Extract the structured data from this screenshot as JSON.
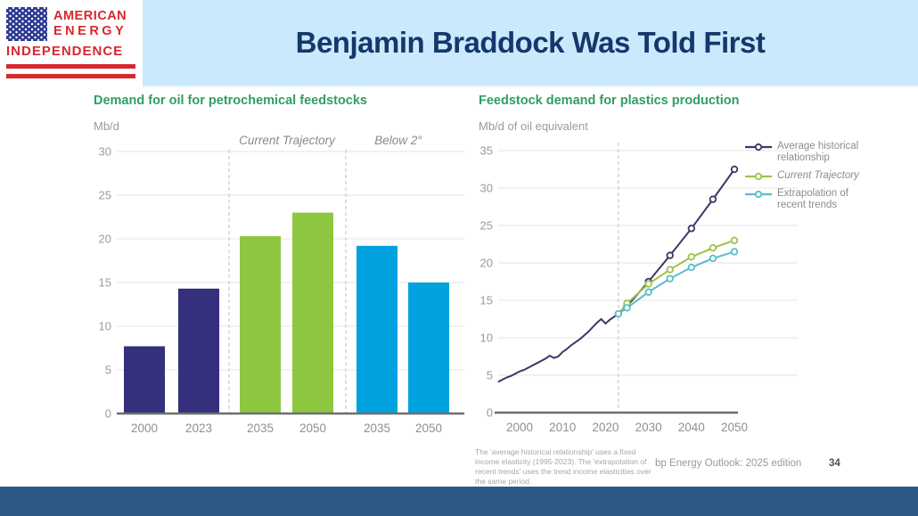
{
  "header": {
    "title": "Benjamin Braddock Was Told First",
    "logo": {
      "line1": "AMERICAN",
      "line2": "ENERGY",
      "line3": "INDEPENDENCE"
    }
  },
  "footer": {
    "footnote": "The 'average historical relationship' uses a fixed income elasticity (1995-2023). The 'extrapolation of recent trends' uses the trend income elasticities over the same period.",
    "source": "bp Energy Outlook: 2025 edition",
    "page_number": "34"
  },
  "colors": {
    "header_bg": "#cbe9fc",
    "title_text": "#14386b",
    "chart_title_green": "#2f9e62",
    "bar_navy": "#34307d",
    "bar_green": "#8dc63f",
    "bar_blue": "#00a3e0",
    "line_navy": "#3b3866",
    "line_green": "#9cc34b",
    "line_cyan": "#5bbcc9",
    "axis_gray": "#6e6e6e",
    "grid_gray": "#e6e6e6",
    "tick_label_gray": "#9b9b9b",
    "category_label_gray": "#8f8f8f",
    "dashed_line_gray": "#c0c0c0",
    "bottom_bar": "#2d5a85",
    "logo_red": "#d7282f",
    "logo_blue": "#2b3990"
  },
  "chart_data": [
    {
      "type": "bar",
      "title": "Demand for oil for petrochemical feedstocks",
      "ylabel": "Mb/d",
      "xlabel": "",
      "ylim": [
        0,
        30
      ],
      "yticks": [
        0,
        5,
        10,
        15,
        20,
        25,
        30
      ],
      "grid": true,
      "groups": [
        {
          "label": "",
          "color": "#34307d",
          "bars": [
            {
              "category": "2000",
              "value": 7.7
            },
            {
              "category": "2023",
              "value": 14.3
            }
          ]
        },
        {
          "label": "Current Trajectory",
          "color": "#8dc63f",
          "bars": [
            {
              "category": "2035",
              "value": 20.3
            },
            {
              "category": "2050",
              "value": 23.0
            }
          ]
        },
        {
          "label": "Below 2°",
          "color": "#00a3e0",
          "bars": [
            {
              "category": "2035",
              "value": 19.2
            },
            {
              "category": "2050",
              "value": 15.0
            }
          ]
        }
      ]
    },
    {
      "type": "line",
      "title": "Feedstock demand for plastics production",
      "ylabel": "Mb/d of oil equivalent",
      "xlabel": "",
      "ylim": [
        0,
        35
      ],
      "xlim": [
        1994,
        2052
      ],
      "yticks": [
        0,
        5,
        10,
        15,
        20,
        25,
        30,
        35
      ],
      "xticks": [
        2000,
        2010,
        2020,
        2030,
        2040,
        2050
      ],
      "vline_x": 2023,
      "grid": true,
      "legend_position": "right",
      "series": [
        {
          "name": "Average historical relationship",
          "italic": false,
          "color": "#3b3866",
          "marker_from": 2025,
          "x": [
            1995,
            1996,
            1997,
            1998,
            1999,
            2000,
            2001,
            2002,
            2003,
            2004,
            2005,
            2006,
            2007,
            2008,
            2009,
            2010,
            2011,
            2012,
            2013,
            2014,
            2015,
            2016,
            2017,
            2018,
            2019,
            2020,
            2021,
            2022,
            2023,
            2025,
            2030,
            2035,
            2040,
            2045,
            2050
          ],
          "y": [
            4.1,
            4.4,
            4.7,
            4.9,
            5.2,
            5.5,
            5.7,
            6.0,
            6.3,
            6.6,
            6.9,
            7.2,
            7.6,
            7.3,
            7.5,
            8.1,
            8.5,
            9.0,
            9.4,
            9.8,
            10.3,
            10.8,
            11.4,
            12.0,
            12.5,
            11.9,
            12.4,
            12.8,
            13.2,
            14.2,
            17.5,
            21.0,
            24.6,
            28.5,
            32.5
          ]
        },
        {
          "name": "Current Trajectory",
          "italic": true,
          "color": "#9cc34b",
          "marker_from": 2023,
          "x": [
            2023,
            2025,
            2030,
            2035,
            2040,
            2045,
            2050
          ],
          "y": [
            13.2,
            14.6,
            17.2,
            19.1,
            20.8,
            22.0,
            23.0
          ]
        },
        {
          "name": "Extrapolation of recent trends",
          "italic": false,
          "color": "#5bbcc9",
          "marker_from": 2023,
          "x": [
            2023,
            2025,
            2030,
            2035,
            2040,
            2045,
            2050
          ],
          "y": [
            13.2,
            14.0,
            16.1,
            17.9,
            19.4,
            20.6,
            21.5
          ]
        }
      ]
    }
  ]
}
